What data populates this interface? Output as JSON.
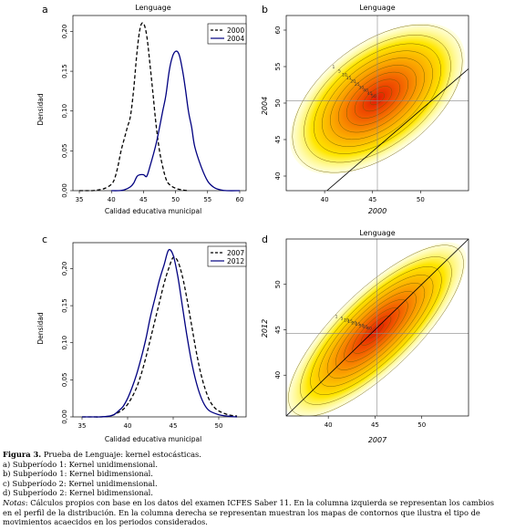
{
  "panels": [
    {
      "letter": "a",
      "title": "Lenguage",
      "xlabel": "Calidad educativa municipal",
      "ylabel": "Densidad",
      "legend": [
        "2000",
        "2004"
      ]
    },
    {
      "letter": "b",
      "title": "Lenguage",
      "xlabel": "2000",
      "ylabel": "2004"
    },
    {
      "letter": "c",
      "title": "",
      "xlabel": "Calidad educativa municipal",
      "ylabel": "Densidad",
      "legend": [
        "2007",
        "2012"
      ]
    },
    {
      "letter": "d",
      "title": "Lenguage",
      "xlabel": "2007",
      "ylabel": "2012"
    }
  ],
  "chart_data": [
    {
      "type": "line",
      "panel": "a",
      "title": "",
      "xlabel": "Calidad educativa municipal",
      "ylabel": "Densidad",
      "xlim": [
        34,
        61
      ],
      "ylim": [
        0,
        0.22
      ],
      "xticks": [
        35,
        40,
        45,
        50,
        55,
        60
      ],
      "yticks": [
        0.0,
        0.05,
        0.1,
        0.15,
        0.2
      ],
      "ytick_labels": [
        "0,00",
        "0,05",
        "0,10",
        "0,15",
        "0,20"
      ],
      "series": [
        {
          "name": "2000",
          "style": "dashed",
          "color": "#000000",
          "x": [
            35,
            36,
            37,
            38,
            39,
            40,
            40.5,
            41,
            41.5,
            42,
            42.5,
            43,
            43.5,
            44,
            44.5,
            45,
            45.5,
            46,
            46.5,
            47,
            47.5,
            48,
            48.5,
            49,
            50,
            51,
            52
          ],
          "y": [
            0.0,
            0.0,
            0.0,
            0.001,
            0.003,
            0.008,
            0.015,
            0.03,
            0.05,
            0.065,
            0.08,
            0.095,
            0.13,
            0.175,
            0.205,
            0.21,
            0.195,
            0.16,
            0.12,
            0.08,
            0.05,
            0.03,
            0.015,
            0.008,
            0.003,
            0.001,
            0.0
          ]
        },
        {
          "name": "2004",
          "style": "solid",
          "color": "#000080",
          "x": [
            40,
            41,
            42,
            43,
            43.5,
            44,
            44.5,
            45,
            45.5,
            46,
            47,
            48,
            48.5,
            49,
            49.5,
            50,
            50.5,
            51,
            51.5,
            52,
            52.5,
            53,
            54,
            55,
            56,
            57,
            58,
            60
          ],
          "y": [
            0.0,
            0.0,
            0.001,
            0.005,
            0.01,
            0.018,
            0.02,
            0.02,
            0.018,
            0.03,
            0.06,
            0.1,
            0.12,
            0.15,
            0.168,
            0.175,
            0.172,
            0.155,
            0.13,
            0.1,
            0.08,
            0.055,
            0.03,
            0.012,
            0.004,
            0.001,
            0.0,
            0.0
          ]
        }
      ],
      "legend_position": "top-right"
    },
    {
      "type": "heatmap",
      "panel": "b",
      "title": "",
      "xlabel": "2000",
      "ylabel": "2004",
      "xlim": [
        36,
        55
      ],
      "ylim": [
        38,
        62
      ],
      "xticks": [
        40,
        45,
        50
      ],
      "yticks": [
        40,
        45,
        50,
        55,
        60
      ],
      "center": [
        45.5,
        50.6
      ],
      "sd": [
        3.7,
        3.3
      ],
      "rho": 0.55,
      "reference_lines": {
        "vline": 45.5,
        "hline": 50.3
      },
      "diagonal": [
        [
          36,
          33.2
        ],
        [
          55,
          54.7
        ]
      ],
      "contour_labels": [
        "1",
        "5",
        "10",
        "15",
        "20",
        "25",
        "30",
        "40",
        "45",
        "50"
      ]
    },
    {
      "type": "line",
      "panel": "c",
      "title": "",
      "xlabel": "Calidad educativa municipal",
      "ylabel": "Densidad",
      "xlim": [
        34,
        53
      ],
      "ylim": [
        0,
        0.235
      ],
      "xticks": [
        35,
        40,
        45,
        50
      ],
      "yticks": [
        0.0,
        0.05,
        0.1,
        0.15,
        0.2
      ],
      "ytick_labels": [
        "0,00",
        "0,05",
        "0,10",
        "0,15",
        "0,20"
      ],
      "series": [
        {
          "name": "2007",
          "style": "dashed",
          "color": "#000000",
          "x": [
            35,
            36,
            37,
            38,
            38.5,
            39,
            39.5,
            40,
            40.5,
            41,
            41.5,
            42,
            42.5,
            43,
            43.5,
            44,
            44.5,
            45,
            45.5,
            46,
            46.5,
            47,
            47.5,
            48,
            48.5,
            49,
            49.5,
            50,
            51,
            52
          ],
          "y": [
            0.0,
            0.0,
            0.0,
            0.001,
            0.003,
            0.006,
            0.01,
            0.017,
            0.027,
            0.04,
            0.058,
            0.08,
            0.105,
            0.13,
            0.155,
            0.18,
            0.2,
            0.215,
            0.21,
            0.19,
            0.16,
            0.125,
            0.09,
            0.06,
            0.038,
            0.022,
            0.013,
            0.008,
            0.003,
            0.001
          ]
        },
        {
          "name": "2012",
          "style": "solid",
          "color": "#000080",
          "x": [
            35,
            36,
            37,
            38,
            38.5,
            39,
            39.5,
            40,
            40.5,
            41,
            41.5,
            42,
            42.5,
            43,
            43.5,
            44,
            44.5,
            45,
            45.5,
            46,
            46.5,
            47,
            47.5,
            48,
            48.5,
            49,
            50,
            51,
            52
          ],
          "y": [
            0.0,
            0.0,
            0.0,
            0.001,
            0.003,
            0.008,
            0.014,
            0.025,
            0.04,
            0.058,
            0.08,
            0.105,
            0.135,
            0.16,
            0.185,
            0.205,
            0.225,
            0.218,
            0.19,
            0.15,
            0.11,
            0.075,
            0.048,
            0.028,
            0.015,
            0.008,
            0.003,
            0.001,
            0.0
          ]
        }
      ],
      "legend_position": "top-right"
    },
    {
      "type": "heatmap",
      "panel": "d",
      "title": "",
      "xlabel": "2007",
      "ylabel": "2012",
      "xlim": [
        35.5,
        55
      ],
      "ylim": [
        35.5,
        55
      ],
      "xticks": [
        40,
        45,
        50
      ],
      "yticks": [
        40,
        45,
        50
      ],
      "center": [
        45.1,
        44.9
      ],
      "sd": [
        3.6,
        3.6
      ],
      "rho": 0.8,
      "reference_lines": {
        "vline": 45.2,
        "hline": 44.6
      },
      "diagonal": [
        [
          35.5,
          35.5
        ],
        [
          55,
          55
        ]
      ],
      "contour_labels": [
        "1",
        "5",
        "10",
        "15",
        "20",
        "25",
        "30",
        "35",
        "40"
      ]
    }
  ],
  "caption": {
    "figure_label": "Figura 3.",
    "figure_title": "Prueba de Lenguaje: kernel estocásticas.",
    "items": [
      "a) Subperíodo 1: Kernel unidimensional.",
      "b) Subperíodo 1: Kernel bidimensional.",
      "c) Subperíodo 2: Kernel unidimensional.",
      "d) Subperíodo 2: Kernel bidimensional."
    ],
    "notes_label": "Notas",
    "notes_text": ": Cálculos propios con base en los datos del examen ICFES Saber 11. En la columna izquierda se representan los cambios en el perfil de la distribución. En la columna  derecha se representan muestran los mapas de contornos que ilustra el tipo de movimientos acaecidos en los periodos considerados."
  }
}
